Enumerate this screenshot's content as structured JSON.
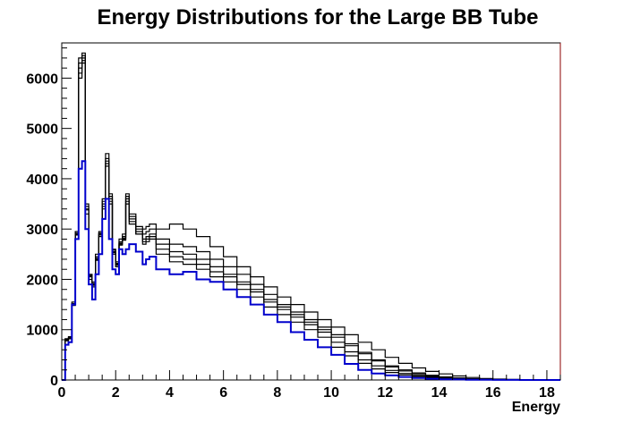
{
  "chart_data": {
    "type": "line",
    "title": "Energy Distributions for the Large BB Tube",
    "xlabel": "Energy",
    "ylabel": "",
    "xlim": [
      0,
      18.5
    ],
    "ylim": [
      0,
      6700
    ],
    "x_ticks": [
      0,
      2,
      4,
      6,
      8,
      10,
      12,
      14,
      16,
      18
    ],
    "y_ticks": [
      0,
      1000,
      2000,
      3000,
      4000,
      5000,
      6000
    ],
    "grid": false,
    "legend": "none",
    "bin_width": 0.125,
    "series": [
      {
        "color": "#0000cc",
        "x": [
          0,
          0.125,
          0.25,
          0.375,
          0.5,
          0.625,
          0.75,
          0.875,
          1.0,
          1.125,
          1.25,
          1.375,
          1.5,
          1.625,
          1.75,
          1.875,
          2.0,
          2.125,
          2.25,
          2.375,
          2.5,
          2.75,
          3.0,
          3.125,
          3.25,
          3.5,
          4.0,
          4.5,
          5.0,
          5.5,
          6.0,
          6.5,
          7.0,
          7.5,
          8.0,
          8.5,
          9.0,
          9.5,
          10.0,
          10.5,
          11.0,
          11.5,
          12.0,
          12.5,
          13.0,
          13.5,
          14.0,
          14.5,
          15.0,
          15.5,
          16.0,
          16.5,
          17.0,
          17.5,
          18.0,
          18.5
        ],
        "y": [
          0,
          700,
          750,
          1500,
          2800,
          4200,
          4350,
          3000,
          1900,
          1600,
          2100,
          2500,
          3200,
          3600,
          2800,
          2200,
          2100,
          2600,
          2500,
          2600,
          2700,
          2550,
          2300,
          2400,
          2450,
          2200,
          2100,
          2150,
          2000,
          1950,
          1800,
          1650,
          1500,
          1300,
          1150,
          950,
          800,
          650,
          500,
          320,
          200,
          130,
          90,
          60,
          40,
          25,
          15,
          10,
          5,
          3,
          2,
          1,
          0,
          0,
          0,
          0
        ]
      },
      {
        "color": "#000000",
        "x": [
          0,
          0.125,
          0.25,
          0.375,
          0.5,
          0.625,
          0.75,
          0.875,
          1.0,
          1.125,
          1.25,
          1.375,
          1.5,
          1.625,
          1.75,
          1.875,
          2.0,
          2.125,
          2.25,
          2.375,
          2.5,
          2.75,
          3.0,
          3.125,
          3.25,
          3.5,
          4.0,
          4.5,
          5.0,
          5.5,
          6.0,
          6.5,
          7.0,
          7.5,
          8.0,
          8.5,
          9.0,
          9.5,
          10.0,
          10.5,
          11.0,
          11.5,
          12.0,
          12.5,
          13.0,
          13.5,
          14.0,
          14.5,
          15.0,
          15.5,
          16.0,
          16.5,
          17.0,
          17.5,
          18.0,
          18.5
        ],
        "y": [
          0,
          800,
          850,
          1500,
          2900,
          6400,
          6450,
          3500,
          2100,
          1900,
          2400,
          2900,
          3500,
          4400,
          3700,
          2600,
          2300,
          2700,
          2800,
          3600,
          3200,
          2900,
          2700,
          2750,
          2800,
          2500,
          2350,
          2300,
          2200,
          2050,
          1950,
          1800,
          1650,
          1450,
          1300,
          1150,
          1000,
          850,
          650,
          480,
          330,
          220,
          150,
          100,
          70,
          45,
          30,
          20,
          10,
          6,
          3,
          2,
          1,
          0,
          0,
          0
        ]
      },
      {
        "color": "#000000",
        "x": [
          0,
          0.125,
          0.25,
          0.375,
          0.5,
          0.625,
          0.75,
          0.875,
          1.0,
          1.125,
          1.25,
          1.375,
          1.5,
          1.625,
          1.75,
          1.875,
          2.0,
          2.125,
          2.25,
          2.375,
          2.5,
          2.75,
          3.0,
          3.125,
          3.25,
          3.5,
          4.0,
          4.5,
          5.0,
          5.5,
          6.0,
          6.5,
          7.0,
          7.5,
          8.0,
          8.5,
          9.0,
          9.5,
          10.0,
          10.5,
          11.0,
          11.5,
          12.0,
          12.5,
          13.0,
          13.5,
          14.0,
          14.5,
          15.0,
          15.5,
          16.0,
          16.5,
          17.0,
          17.5,
          18.0,
          18.5
        ],
        "y": [
          0,
          780,
          820,
          1550,
          2950,
          6000,
          6500,
          3400,
          2050,
          1850,
          2500,
          2950,
          3600,
          4500,
          3600,
          2500,
          2250,
          2800,
          2900,
          3700,
          3300,
          3000,
          2800,
          2850,
          2900,
          2600,
          2450,
          2400,
          2300,
          2150,
          2050,
          1900,
          1750,
          1550,
          1400,
          1250,
          1100,
          950,
          750,
          560,
          400,
          280,
          190,
          130,
          90,
          60,
          40,
          25,
          15,
          8,
          4,
          2,
          1,
          0,
          0,
          0
        ]
      },
      {
        "color": "#000000",
        "x": [
          0,
          0.125,
          0.25,
          0.375,
          0.5,
          0.625,
          0.75,
          0.875,
          1.0,
          1.125,
          1.25,
          1.375,
          1.5,
          1.625,
          1.75,
          1.875,
          2.0,
          2.125,
          2.25,
          2.375,
          2.5,
          2.75,
          3.0,
          3.125,
          3.25,
          3.5,
          4.0,
          4.5,
          5.0,
          5.5,
          6.0,
          6.5,
          7.0,
          7.5,
          8.0,
          8.5,
          9.0,
          9.5,
          10.0,
          10.5,
          11.0,
          11.5,
          12.0,
          12.5,
          13.0,
          13.5,
          14.0,
          14.5,
          15.0,
          15.5,
          16.0,
          16.5,
          17.0,
          17.5,
          18.0,
          18.5
        ],
        "y": [
          0,
          820,
          840,
          1480,
          2880,
          6200,
          6300,
          3300,
          2000,
          1950,
          2450,
          2850,
          3400,
          4300,
          3500,
          2550,
          2350,
          2750,
          2850,
          3500,
          3100,
          2950,
          2900,
          2950,
          3000,
          2800,
          2700,
          2650,
          2550,
          2400,
          2250,
          2100,
          1900,
          1700,
          1500,
          1350,
          1200,
          1050,
          900,
          720,
          550,
          400,
          280,
          200,
          140,
          95,
          60,
          40,
          25,
          15,
          8,
          4,
          2,
          1,
          0,
          0
        ]
      },
      {
        "color": "#000000",
        "x": [
          0,
          0.125,
          0.25,
          0.375,
          0.5,
          0.625,
          0.75,
          0.875,
          1.0,
          1.125,
          1.25,
          1.375,
          1.5,
          1.625,
          1.75,
          1.875,
          2.0,
          2.125,
          2.25,
          2.375,
          2.5,
          2.75,
          3.0,
          3.125,
          3.25,
          3.5,
          4.0,
          4.5,
          5.0,
          5.5,
          6.0,
          6.5,
          7.0,
          7.5,
          8.0,
          8.5,
          9.0,
          9.5,
          10.0,
          10.5,
          11.0,
          11.5,
          12.0,
          12.5,
          13.0,
          13.5,
          14.0,
          14.5,
          15.0,
          15.5,
          16.0,
          16.5,
          17.0,
          17.5,
          18.0,
          18.5
        ],
        "y": [
          0,
          790,
          830,
          1520,
          2920,
          6100,
          6400,
          3450,
          2080,
          1920,
          2420,
          2920,
          3550,
          4350,
          3650,
          2580,
          2320,
          2720,
          2820,
          3650,
          3250,
          3050,
          3000,
          3050,
          3100,
          3000,
          3100,
          3000,
          2850,
          2650,
          2450,
          2250,
          2050,
          1850,
          1650,
          1500,
          1350,
          1200,
          1050,
          900,
          750,
          600,
          450,
          330,
          240,
          170,
          120,
          80,
          50,
          30,
          18,
          10,
          5,
          2,
          1,
          0
        ]
      },
      {
        "color": "#000000",
        "x": [
          0,
          0.125,
          0.25,
          0.375,
          0.5,
          0.625,
          0.75,
          0.875,
          1.0,
          1.125,
          1.25,
          1.375,
          1.5,
          1.625,
          1.75,
          1.875,
          2.0,
          2.125,
          2.25,
          2.375,
          2.5,
          2.75,
          3.0,
          3.125,
          3.25,
          3.5,
          4.0,
          4.5,
          5.0,
          5.5,
          6.0,
          6.5,
          7.0,
          7.5,
          8.0,
          8.5,
          9.0,
          9.5,
          10.0,
          10.5,
          11.0,
          11.5,
          12.0,
          12.5,
          13.0,
          13.5,
          14.0,
          14.5,
          15.0,
          15.5,
          16.0,
          16.5,
          17.0,
          17.5,
          18.0,
          18.5
        ],
        "y": [
          0,
          810,
          860,
          1490,
          2890,
          6300,
          6350,
          3380,
          2060,
          1880,
          2380,
          2880,
          3450,
          4250,
          3550,
          2530,
          2280,
          2680,
          2780,
          3550,
          3150,
          2900,
          2750,
          2800,
          2850,
          2700,
          2550,
          2500,
          2400,
          2250,
          2100,
          1950,
          1800,
          1600,
          1450,
          1300,
          1150,
          1000,
          850,
          680,
          520,
          380,
          260,
          180,
          120,
          80,
          50,
          30,
          18,
          10,
          5,
          3,
          1,
          0,
          0,
          0
        ]
      }
    ]
  }
}
